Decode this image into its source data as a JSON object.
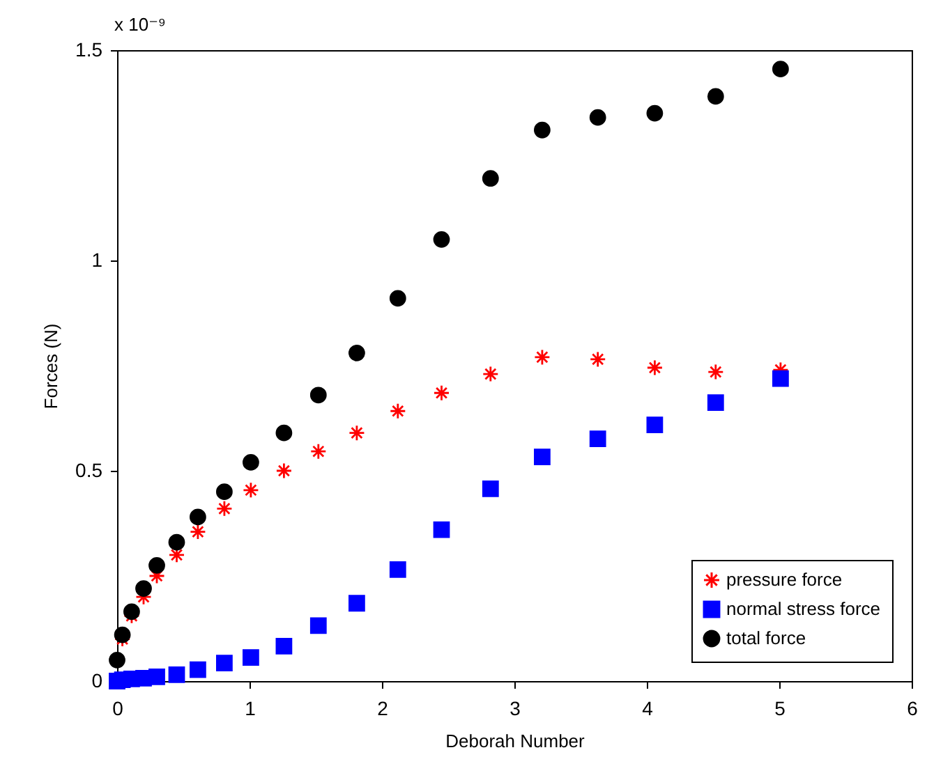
{
  "chart_data": {
    "type": "scatter",
    "xlabel": "Deborah Number",
    "ylabel": "Forces (N)",
    "annotations": [
      "x 10⁻⁹"
    ],
    "x": [
      0,
      0.04,
      0.11,
      0.2,
      0.3,
      0.45,
      0.61,
      0.81,
      1.01,
      1.26,
      1.52,
      1.81,
      2.12,
      2.45,
      2.82,
      3.21,
      3.63,
      4.06,
      4.52,
      5.01
    ],
    "series": [
      {
        "name": "pressure force",
        "color": "#ff0000",
        "marker": "cross",
        "values": [
          null,
          0.1,
          0.155,
          0.2,
          0.25,
          0.3,
          0.355,
          0.41,
          0.454,
          0.5,
          0.546,
          0.59,
          0.642,
          0.685,
          0.73,
          0.77,
          0.765,
          0.745,
          0.735,
          0.74
        ]
      },
      {
        "name": "normal stress force",
        "color": "#0000ff",
        "marker": "square",
        "values": [
          0,
          0.003,
          0.005,
          0.007,
          0.01,
          0.015,
          0.027,
          0.043,
          0.056,
          0.083,
          0.132,
          0.185,
          0.265,
          0.36,
          0.457,
          0.533,
          0.576,
          0.609,
          0.662,
          0.719
        ]
      },
      {
        "name": "total force",
        "color": "#000000",
        "marker": "circle",
        "values": [
          0.05,
          0.11,
          0.165,
          0.22,
          0.275,
          0.33,
          0.39,
          0.45,
          0.52,
          0.59,
          0.68,
          0.78,
          0.91,
          1.05,
          1.195,
          1.31,
          1.34,
          1.35,
          1.39,
          1.455
        ]
      }
    ],
    "xlim": [
      0,
      6
    ],
    "xticks": [
      0,
      1,
      2,
      3,
      4,
      5,
      6
    ],
    "ylim": [
      0,
      1.5
    ],
    "yticks": [
      0,
      0.5,
      1,
      1.5
    ],
    "grid": false,
    "legend": "bottom right"
  }
}
